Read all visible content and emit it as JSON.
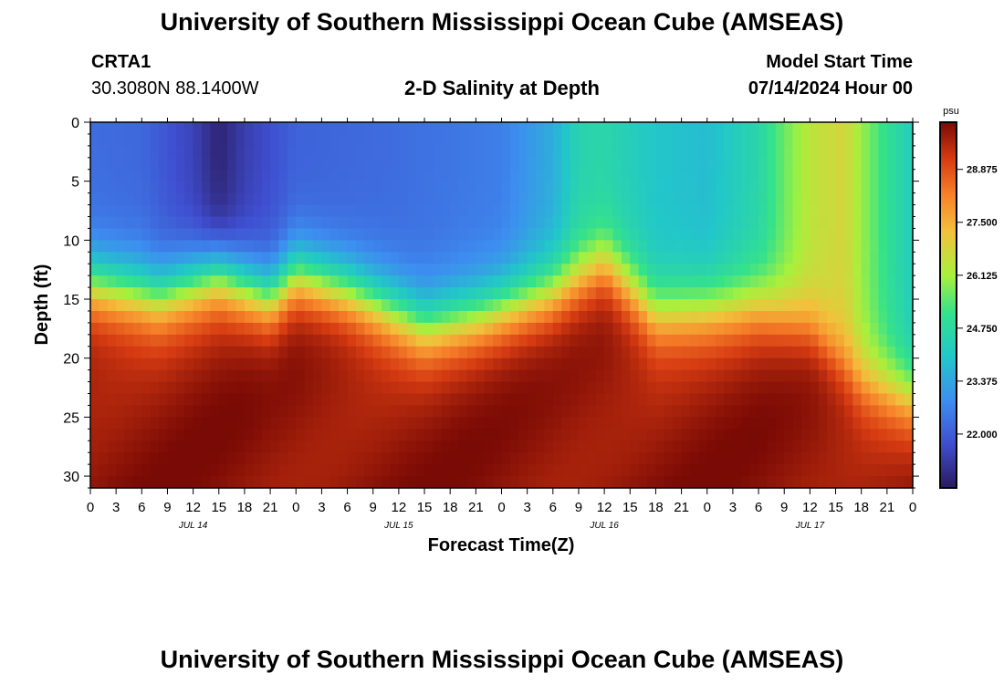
{
  "page": {
    "title": "University of Southern Mississippi Ocean Cube (AMSEAS)",
    "footer_title": "University of Southern Mississippi Ocean Cube (AMSEAS)",
    "station_id": "CRTA1",
    "station_coords": "30.3080N  88.1400W",
    "plot_title": "2-D Salinity at Depth",
    "model_start_label": "Model Start Time",
    "model_start_value": "07/14/2024 Hour 00"
  },
  "chart_data": {
    "type": "heatmap",
    "title": "2-D Salinity at Depth",
    "xlabel": "Forecast Time(Z)",
    "ylabel": "Depth (ft)",
    "x_range_hours": [
      0,
      96
    ],
    "ylim": [
      0,
      31
    ],
    "y_ticks": [
      0,
      5,
      10,
      15,
      20,
      25,
      30
    ],
    "x_tick_labels": [
      "0",
      "3",
      "6",
      "9",
      "12",
      "15",
      "18",
      "21",
      "0",
      "3",
      "6",
      "9",
      "12",
      "15",
      "18",
      "21",
      "0",
      "3",
      "6",
      "9",
      "12",
      "15",
      "18",
      "21",
      "0",
      "3",
      "6",
      "9",
      "12",
      "15",
      "18",
      "21",
      "0"
    ],
    "day_labels": [
      {
        "label": "JUL 14",
        "hour": 12
      },
      {
        "label": "JUL 15",
        "hour": 36
      },
      {
        "label": "JUL 16",
        "hour": 60
      },
      {
        "label": "JUL 17",
        "hour": 84
      }
    ],
    "colorbar": {
      "unit": "psu",
      "min": 20.6,
      "max": 30.1,
      "ticks": [
        "22.000",
        "23.375",
        "24.750",
        "26.125",
        "27.500",
        "28.875"
      ]
    },
    "surface_salinity_by_hour": [
      {
        "hour": 0,
        "value": 22.3
      },
      {
        "hour": 6,
        "value": 22.2
      },
      {
        "hour": 12,
        "value": 21.5
      },
      {
        "hour": 15,
        "value": 20.8
      },
      {
        "hour": 18,
        "value": 21.4
      },
      {
        "hour": 24,
        "value": 22.1
      },
      {
        "hour": 36,
        "value": 22.3
      },
      {
        "hour": 48,
        "value": 22.6
      },
      {
        "hour": 54,
        "value": 23.5
      },
      {
        "hour": 57,
        "value": 24.5
      },
      {
        "hour": 60,
        "value": 24.6
      },
      {
        "hour": 66,
        "value": 24.0
      },
      {
        "hour": 72,
        "value": 23.8
      },
      {
        "hour": 78,
        "value": 24.6
      },
      {
        "hour": 81,
        "value": 25.6
      },
      {
        "hour": 84,
        "value": 26.4
      },
      {
        "hour": 88,
        "value": 26.8
      },
      {
        "hour": 90,
        "value": 26.0
      },
      {
        "hour": 93,
        "value": 25.0
      },
      {
        "hour": 96,
        "value": 24.2
      }
    ],
    "halocline_depth_by_hour": [
      {
        "hour": 0,
        "value": 13.5
      },
      {
        "hour": 8,
        "value": 14.5
      },
      {
        "hour": 15,
        "value": 12.5
      },
      {
        "hour": 21,
        "value": 14.5
      },
      {
        "hour": 24,
        "value": 12.5
      },
      {
        "hour": 30,
        "value": 14.0
      },
      {
        "hour": 39,
        "value": 17.0
      },
      {
        "hour": 45,
        "value": 16.0
      },
      {
        "hour": 54,
        "value": 14.0
      },
      {
        "hour": 60,
        "value": 11.5
      },
      {
        "hour": 66,
        "value": 16.0
      },
      {
        "hour": 72,
        "value": 15.5
      },
      {
        "hour": 78,
        "value": 15.0
      },
      {
        "hour": 84,
        "value": 16.5
      },
      {
        "hour": 90,
        "value": 21.5
      },
      {
        "hour": 96,
        "value": 23.0
      }
    ],
    "bottom_salinity_max": 29.9
  }
}
